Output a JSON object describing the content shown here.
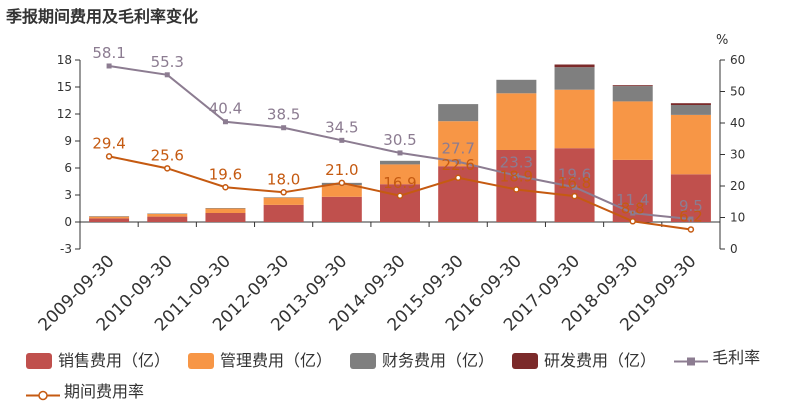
{
  "chart_data": {
    "type": "bar",
    "title": "季报期间费用及毛利率变化",
    "categories": [
      "2009-09-30",
      "2010-09-30",
      "2011-09-30",
      "2012-09-30",
      "2013-09-30",
      "2014-09-30",
      "2015-09-30",
      "2016-09-30",
      "2017-09-30",
      "2018-09-30",
      "2019-09-30"
    ],
    "left_axis": {
      "ylim": [
        -3,
        18
      ],
      "ticks": [
        -3,
        0,
        3,
        6,
        9,
        12,
        15,
        18
      ]
    },
    "right_axis": {
      "unit_label": "%",
      "ylim": [
        0,
        60
      ],
      "ticks": [
        0,
        10,
        20,
        30,
        40,
        50,
        60
      ]
    },
    "bar_series": [
      {
        "name": "销售费用（亿）",
        "color": "#c0504d",
        "values": [
          0.4,
          0.6,
          1.0,
          1.9,
          2.8,
          4.2,
          6.2,
          8.0,
          8.2,
          6.9,
          5.3
        ]
      },
      {
        "name": "管理费用（亿）",
        "color": "#f79646",
        "values": [
          0.2,
          0.3,
          0.5,
          0.8,
          1.3,
          2.2,
          5.0,
          6.3,
          6.5,
          6.5,
          6.6
        ]
      },
      {
        "name": "财务费用（亿）",
        "color": "#7f7f7f",
        "values": [
          0.05,
          0.05,
          0.05,
          0.05,
          0.25,
          0.4,
          1.9,
          1.5,
          2.5,
          1.7,
          1.1
        ]
      },
      {
        "name": "研发费用（亿）",
        "color": "#7b2a2a",
        "values": [
          0,
          0,
          0,
          0,
          0,
          0,
          0,
          0,
          0.3,
          0.1,
          0.2
        ]
      }
    ],
    "line_series": [
      {
        "name": "毛利率",
        "color": "#8c7c91",
        "marker": "square",
        "values": [
          58.1,
          55.3,
          40.4,
          38.5,
          34.5,
          30.5,
          27.7,
          23.3,
          19.6,
          11.4,
          9.5
        ],
        "labels": [
          "58.1",
          "55.3",
          "40.4",
          "38.5",
          "34.5",
          "30.5",
          "27.7",
          "23.3",
          "19.6",
          "11.4",
          "9.5"
        ]
      },
      {
        "name": "期间费用率",
        "color": "#c55a11",
        "marker": "circle",
        "values": [
          29.4,
          25.6,
          19.6,
          18.0,
          21.0,
          16.9,
          22.6,
          18.9,
          16.8,
          8.8,
          6.2
        ],
        "labels": [
          "29.4",
          "25.6",
          "19.6",
          "18.0",
          "21.0",
          "16.9",
          "22.6",
          "18.9",
          "16.8",
          "8.8",
          "6.2"
        ]
      }
    ],
    "grid": false,
    "legend_position": "bottom"
  }
}
